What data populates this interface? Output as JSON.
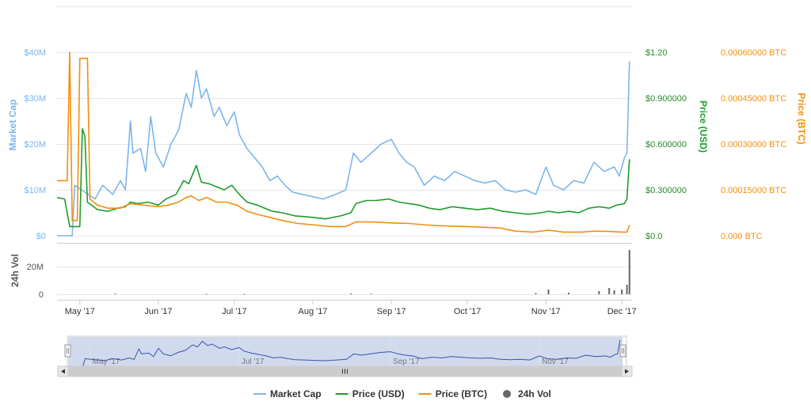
{
  "chart_data": {
    "type": "line",
    "title": "",
    "x_range": [
      "2017-04-22",
      "2017-12-05"
    ],
    "x_ticks": [
      "May '17",
      "Jun '17",
      "Jul '17",
      "Aug '17",
      "Sep '17",
      "Oct '17",
      "Nov '17",
      "Dec '17"
    ],
    "navigator_ticks": [
      "May '17",
      "Jul '17",
      "Sep '17",
      "Nov '17"
    ],
    "axes": {
      "market_cap": {
        "label": "Market Cap",
        "ticks": [
          "$0",
          "$10M",
          "$20M",
          "$30M",
          "$40M"
        ],
        "range": [
          0,
          40000000
        ]
      },
      "price_usd": {
        "label": "Price (USD)",
        "ticks": [
          "$0.0",
          "$0.300000",
          "$0.600000",
          "$0.900000",
          "$1.20"
        ],
        "range": [
          0,
          1.2
        ]
      },
      "price_btc": {
        "label": "Price (BTC)",
        "ticks": [
          "0.000 BTC",
          "0.00015000 BTC",
          "0.00030000 BTC",
          "0.00045000 BTC",
          "0.00060000 BTC"
        ],
        "range": [
          0,
          0.0006
        ]
      },
      "volume": {
        "label": "24h Vol",
        "ticks": [
          "0",
          "20M"
        ],
        "range": [
          0,
          30000000
        ]
      }
    },
    "legend_position": "bottom-center",
    "series": [
      {
        "name": "Market Cap",
        "color": "#7cb5ec",
        "points": [
          [
            "2017-04-22",
            0
          ],
          [
            "2017-04-28",
            0
          ],
          [
            "2017-04-29",
            11000000
          ],
          [
            "2017-05-03",
            9500000
          ],
          [
            "2017-05-07",
            8000000
          ],
          [
            "2017-05-10",
            11000000
          ],
          [
            "2017-05-14",
            9000000
          ],
          [
            "2017-05-17",
            12000000
          ],
          [
            "2017-05-19",
            10000000
          ],
          [
            "2017-05-21",
            25000000
          ],
          [
            "2017-05-22",
            18000000
          ],
          [
            "2017-05-25",
            19000000
          ],
          [
            "2017-05-27",
            14000000
          ],
          [
            "2017-05-29",
            26000000
          ],
          [
            "2017-05-31",
            18000000
          ],
          [
            "2017-06-03",
            15000000
          ],
          [
            "2017-06-06",
            20000000
          ],
          [
            "2017-06-09",
            23000000
          ],
          [
            "2017-06-12",
            31000000
          ],
          [
            "2017-06-14",
            28000000
          ],
          [
            "2017-06-16",
            36000000
          ],
          [
            "2017-06-18",
            30000000
          ],
          [
            "2017-06-20",
            32000000
          ],
          [
            "2017-06-23",
            26000000
          ],
          [
            "2017-06-25",
            28000000
          ],
          [
            "2017-06-28",
            24000000
          ],
          [
            "2017-07-01",
            27000000
          ],
          [
            "2017-07-03",
            22000000
          ],
          [
            "2017-07-06",
            19000000
          ],
          [
            "2017-07-09",
            17000000
          ],
          [
            "2017-07-12",
            15000000
          ],
          [
            "2017-07-15",
            12000000
          ],
          [
            "2017-07-18",
            13000000
          ],
          [
            "2017-07-21",
            11000000
          ],
          [
            "2017-07-24",
            9500000
          ],
          [
            "2017-07-28",
            9000000
          ],
          [
            "2017-08-01",
            8500000
          ],
          [
            "2017-08-05",
            8000000
          ],
          [
            "2017-08-10",
            9000000
          ],
          [
            "2017-08-14",
            10000000
          ],
          [
            "2017-08-17",
            18000000
          ],
          [
            "2017-08-20",
            16000000
          ],
          [
            "2017-08-24",
            18000000
          ],
          [
            "2017-08-28",
            20000000
          ],
          [
            "2017-09-01",
            21000000
          ],
          [
            "2017-09-04",
            18000000
          ],
          [
            "2017-09-07",
            16000000
          ],
          [
            "2017-09-10",
            15000000
          ],
          [
            "2017-09-14",
            11000000
          ],
          [
            "2017-09-18",
            13000000
          ],
          [
            "2017-09-22",
            12000000
          ],
          [
            "2017-09-26",
            14000000
          ],
          [
            "2017-09-30",
            13000000
          ],
          [
            "2017-10-04",
            12000000
          ],
          [
            "2017-10-08",
            11500000
          ],
          [
            "2017-10-12",
            12000000
          ],
          [
            "2017-10-16",
            10000000
          ],
          [
            "2017-10-20",
            9500000
          ],
          [
            "2017-10-24",
            10000000
          ],
          [
            "2017-10-28",
            9000000
          ],
          [
            "2017-11-01",
            15000000
          ],
          [
            "2017-11-04",
            11000000
          ],
          [
            "2017-11-08",
            10000000
          ],
          [
            "2017-11-12",
            12000000
          ],
          [
            "2017-11-16",
            11500000
          ],
          [
            "2017-11-20",
            16000000
          ],
          [
            "2017-11-24",
            14000000
          ],
          [
            "2017-11-28",
            15000000
          ],
          [
            "2017-11-30",
            13000000
          ],
          [
            "2017-12-02",
            17000000
          ],
          [
            "2017-12-03",
            18000000
          ],
          [
            "2017-12-04",
            38000000
          ]
        ]
      },
      {
        "name": "Price (USD)",
        "color": "#1e9c2e",
        "points": [
          [
            "2017-04-22",
            0.25
          ],
          [
            "2017-04-25",
            0.24
          ],
          [
            "2017-04-27",
            0.06
          ],
          [
            "2017-05-01",
            0.06
          ],
          [
            "2017-05-02",
            0.7
          ],
          [
            "2017-05-03",
            0.65
          ],
          [
            "2017-05-04",
            0.22
          ],
          [
            "2017-05-08",
            0.17
          ],
          [
            "2017-05-12",
            0.16
          ],
          [
            "2017-05-16",
            0.18
          ],
          [
            "2017-05-19",
            0.19
          ],
          [
            "2017-05-21",
            0.22
          ],
          [
            "2017-05-24",
            0.21
          ],
          [
            "2017-05-28",
            0.22
          ],
          [
            "2017-06-01",
            0.2
          ],
          [
            "2017-06-04",
            0.24
          ],
          [
            "2017-06-08",
            0.27
          ],
          [
            "2017-06-11",
            0.36
          ],
          [
            "2017-06-13",
            0.34
          ],
          [
            "2017-06-16",
            0.46
          ],
          [
            "2017-06-18",
            0.35
          ],
          [
            "2017-06-21",
            0.34
          ],
          [
            "2017-06-24",
            0.32
          ],
          [
            "2017-06-27",
            0.3
          ],
          [
            "2017-06-30",
            0.33
          ],
          [
            "2017-07-03",
            0.27
          ],
          [
            "2017-07-06",
            0.22
          ],
          [
            "2017-07-10",
            0.2
          ],
          [
            "2017-07-13",
            0.18
          ],
          [
            "2017-07-16",
            0.16
          ],
          [
            "2017-07-20",
            0.15
          ],
          [
            "2017-07-25",
            0.13
          ],
          [
            "2017-08-01",
            0.12
          ],
          [
            "2017-08-06",
            0.11
          ],
          [
            "2017-08-12",
            0.13
          ],
          [
            "2017-08-16",
            0.15
          ],
          [
            "2017-08-18",
            0.21
          ],
          [
            "2017-08-22",
            0.23
          ],
          [
            "2017-08-26",
            0.23
          ],
          [
            "2017-08-31",
            0.24
          ],
          [
            "2017-09-04",
            0.22
          ],
          [
            "2017-09-08",
            0.21
          ],
          [
            "2017-09-12",
            0.2
          ],
          [
            "2017-09-16",
            0.18
          ],
          [
            "2017-09-20",
            0.17
          ],
          [
            "2017-09-25",
            0.19
          ],
          [
            "2017-09-30",
            0.18
          ],
          [
            "2017-10-05",
            0.17
          ],
          [
            "2017-10-10",
            0.18
          ],
          [
            "2017-10-15",
            0.16
          ],
          [
            "2017-10-20",
            0.15
          ],
          [
            "2017-10-25",
            0.14
          ],
          [
            "2017-10-30",
            0.15
          ],
          [
            "2017-11-02",
            0.16
          ],
          [
            "2017-11-06",
            0.15
          ],
          [
            "2017-11-10",
            0.16
          ],
          [
            "2017-11-14",
            0.15
          ],
          [
            "2017-11-18",
            0.18
          ],
          [
            "2017-11-22",
            0.19
          ],
          [
            "2017-11-26",
            0.18
          ],
          [
            "2017-11-29",
            0.2
          ],
          [
            "2017-12-02",
            0.21
          ],
          [
            "2017-12-03",
            0.24
          ],
          [
            "2017-12-04",
            0.5
          ]
        ]
      },
      {
        "name": "Price (BTC)",
        "color": "#f28f0c",
        "points": [
          [
            "2017-04-22",
            0.00018
          ],
          [
            "2017-04-26",
            0.00018
          ],
          [
            "2017-04-27",
            0.0006
          ],
          [
            "2017-04-28",
            5e-05
          ],
          [
            "2017-04-30",
            5e-05
          ],
          [
            "2017-05-01",
            0.00058
          ],
          [
            "2017-05-04",
            0.00058
          ],
          [
            "2017-05-05",
            0.00012
          ],
          [
            "2017-05-08",
            0.0001
          ],
          [
            "2017-05-12",
            9e-05
          ],
          [
            "2017-05-17",
            9e-05
          ],
          [
            "2017-05-21",
            0.000105
          ],
          [
            "2017-05-26",
            0.0001
          ],
          [
            "2017-06-01",
            9.5e-05
          ],
          [
            "2017-06-05",
            0.0001
          ],
          [
            "2017-06-09",
            0.00011
          ],
          [
            "2017-06-12",
            0.000125
          ],
          [
            "2017-06-14",
            0.00013
          ],
          [
            "2017-06-17",
            0.000115
          ],
          [
            "2017-06-20",
            0.000125
          ],
          [
            "2017-06-24",
            0.00011
          ],
          [
            "2017-06-28",
            0.00011
          ],
          [
            "2017-07-02",
            0.0001
          ],
          [
            "2017-07-06",
            8e-05
          ],
          [
            "2017-07-10",
            7e-05
          ],
          [
            "2017-07-15",
            6e-05
          ],
          [
            "2017-07-20",
            5e-05
          ],
          [
            "2017-07-26",
            4e-05
          ],
          [
            "2017-08-02",
            3.5e-05
          ],
          [
            "2017-08-08",
            3e-05
          ],
          [
            "2017-08-14",
            3e-05
          ],
          [
            "2017-08-18",
            4.5e-05
          ],
          [
            "2017-08-24",
            4.5e-05
          ],
          [
            "2017-09-01",
            4.2e-05
          ],
          [
            "2017-09-08",
            4e-05
          ],
          [
            "2017-09-15",
            3.5e-05
          ],
          [
            "2017-09-22",
            3.2e-05
          ],
          [
            "2017-09-30",
            3e-05
          ],
          [
            "2017-10-07",
            2.8e-05
          ],
          [
            "2017-10-14",
            2.5e-05
          ],
          [
            "2017-10-20",
            1.5e-05
          ],
          [
            "2017-10-27",
            1.2e-05
          ],
          [
            "2017-11-02",
            1.8e-05
          ],
          [
            "2017-11-08",
            1.2e-05
          ],
          [
            "2017-11-15",
            1.2e-05
          ],
          [
            "2017-11-20",
            1.5e-05
          ],
          [
            "2017-11-26",
            1.4e-05
          ],
          [
            "2017-12-01",
            1.2e-05
          ],
          [
            "2017-12-03",
            1.2e-05
          ],
          [
            "2017-12-04",
            3.5e-05
          ]
        ]
      },
      {
        "name": "24h Vol",
        "color": "#666666",
        "points": [
          [
            "2017-05-15",
            400000
          ],
          [
            "2017-06-20",
            300000
          ],
          [
            "2017-07-05",
            250000
          ],
          [
            "2017-08-16",
            500000
          ],
          [
            "2017-08-24",
            350000
          ],
          [
            "2017-10-28",
            800000
          ],
          [
            "2017-11-02",
            3000000
          ],
          [
            "2017-11-10",
            1000000
          ],
          [
            "2017-11-22",
            2000000
          ],
          [
            "2017-11-26",
            4000000
          ],
          [
            "2017-11-28",
            2500000
          ],
          [
            "2017-12-01",
            3000000
          ],
          [
            "2017-12-03",
            6000000
          ],
          [
            "2017-12-04",
            28000000
          ]
        ]
      }
    ]
  }
}
